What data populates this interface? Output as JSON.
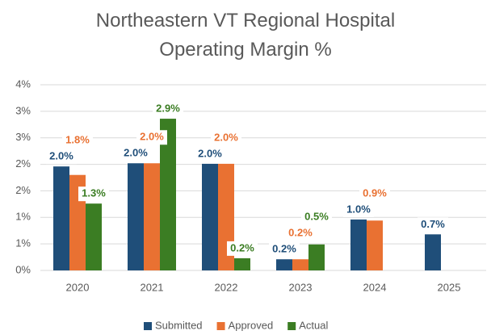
{
  "chart_data": {
    "type": "bar",
    "title": "Northeastern VT Regional Hospital Operating Margin %",
    "categories": [
      "2020",
      "2021",
      "2022",
      "2023",
      "2024",
      "2025"
    ],
    "series": [
      {
        "name": "Submitted",
        "color": "#1f4e79",
        "values": [
          1.96,
          2.02,
          2.01,
          0.21,
          0.96,
          0.68
        ],
        "value_labels": [
          "2.0%",
          "2.0%",
          "2.0%",
          "0.2%",
          "1.0%",
          "0.7%"
        ]
      },
      {
        "name": "Approved",
        "color": "#e97132",
        "values": [
          1.8,
          2.02,
          2.01,
          0.21,
          0.94,
          null
        ],
        "value_labels": [
          "1.8%",
          "2.0%",
          "2.0%",
          "0.2%",
          "0.9%",
          null
        ]
      },
      {
        "name": "Actual",
        "color": "#3b7d23",
        "values": [
          1.26,
          2.86,
          0.23,
          0.49,
          null,
          null
        ],
        "value_labels": [
          "1.3%",
          "2.9%",
          "0.2%",
          "0.5%",
          null,
          null
        ]
      }
    ],
    "ylim": [
      0,
      3.5
    ],
    "yticks": [
      {
        "value": 0,
        "label": "0%"
      },
      {
        "value": 0.5,
        "label": "1%"
      },
      {
        "value": 1,
        "label": "1%"
      },
      {
        "value": 1.5,
        "label": "2%"
      },
      {
        "value": 2,
        "label": "2%"
      },
      {
        "value": 2.5,
        "label": "3%"
      },
      {
        "value": 3,
        "label": "3%"
      },
      {
        "value": 3.5,
        "label": "4%"
      }
    ],
    "grid": true,
    "legend": "bottom"
  }
}
